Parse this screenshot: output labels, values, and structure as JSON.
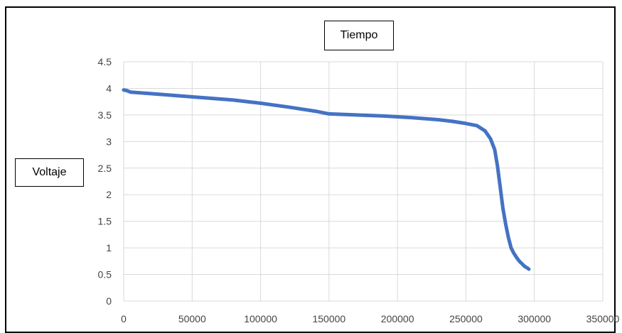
{
  "chart_data": {
    "type": "line",
    "title": "Tiempo",
    "xlabel": "",
    "ylabel": "Voltaje",
    "xlim": [
      0,
      350000
    ],
    "ylim": [
      0,
      4.5
    ],
    "x_ticks": [
      "0",
      "50000",
      "100000",
      "150000",
      "200000",
      "250000",
      "300000",
      "350000"
    ],
    "y_ticks": [
      "0",
      "0.5",
      "1",
      "1.5",
      "2",
      "2.5",
      "3",
      "3.5",
      "4",
      "4.5"
    ],
    "grid": true,
    "legend": "none",
    "series": [
      {
        "color": "#4472C4",
        "x": [
          0,
          2000,
          5000,
          20000,
          40000,
          60000,
          80000,
          100000,
          120000,
          140000,
          150000,
          170000,
          190000,
          210000,
          230000,
          240000,
          250000,
          258000,
          264000,
          268000,
          271000,
          273000,
          275000,
          277000,
          279000,
          281000,
          283000,
          285000,
          287000,
          289000,
          291000,
          293000,
          295000,
          296000
        ],
        "y": [
          3.97,
          3.96,
          3.93,
          3.9,
          3.86,
          3.82,
          3.78,
          3.72,
          3.65,
          3.57,
          3.52,
          3.5,
          3.48,
          3.45,
          3.41,
          3.38,
          3.34,
          3.3,
          3.2,
          3.05,
          2.85,
          2.55,
          2.15,
          1.75,
          1.45,
          1.2,
          1.0,
          0.9,
          0.82,
          0.75,
          0.7,
          0.65,
          0.62,
          0.6
        ]
      }
    ]
  }
}
